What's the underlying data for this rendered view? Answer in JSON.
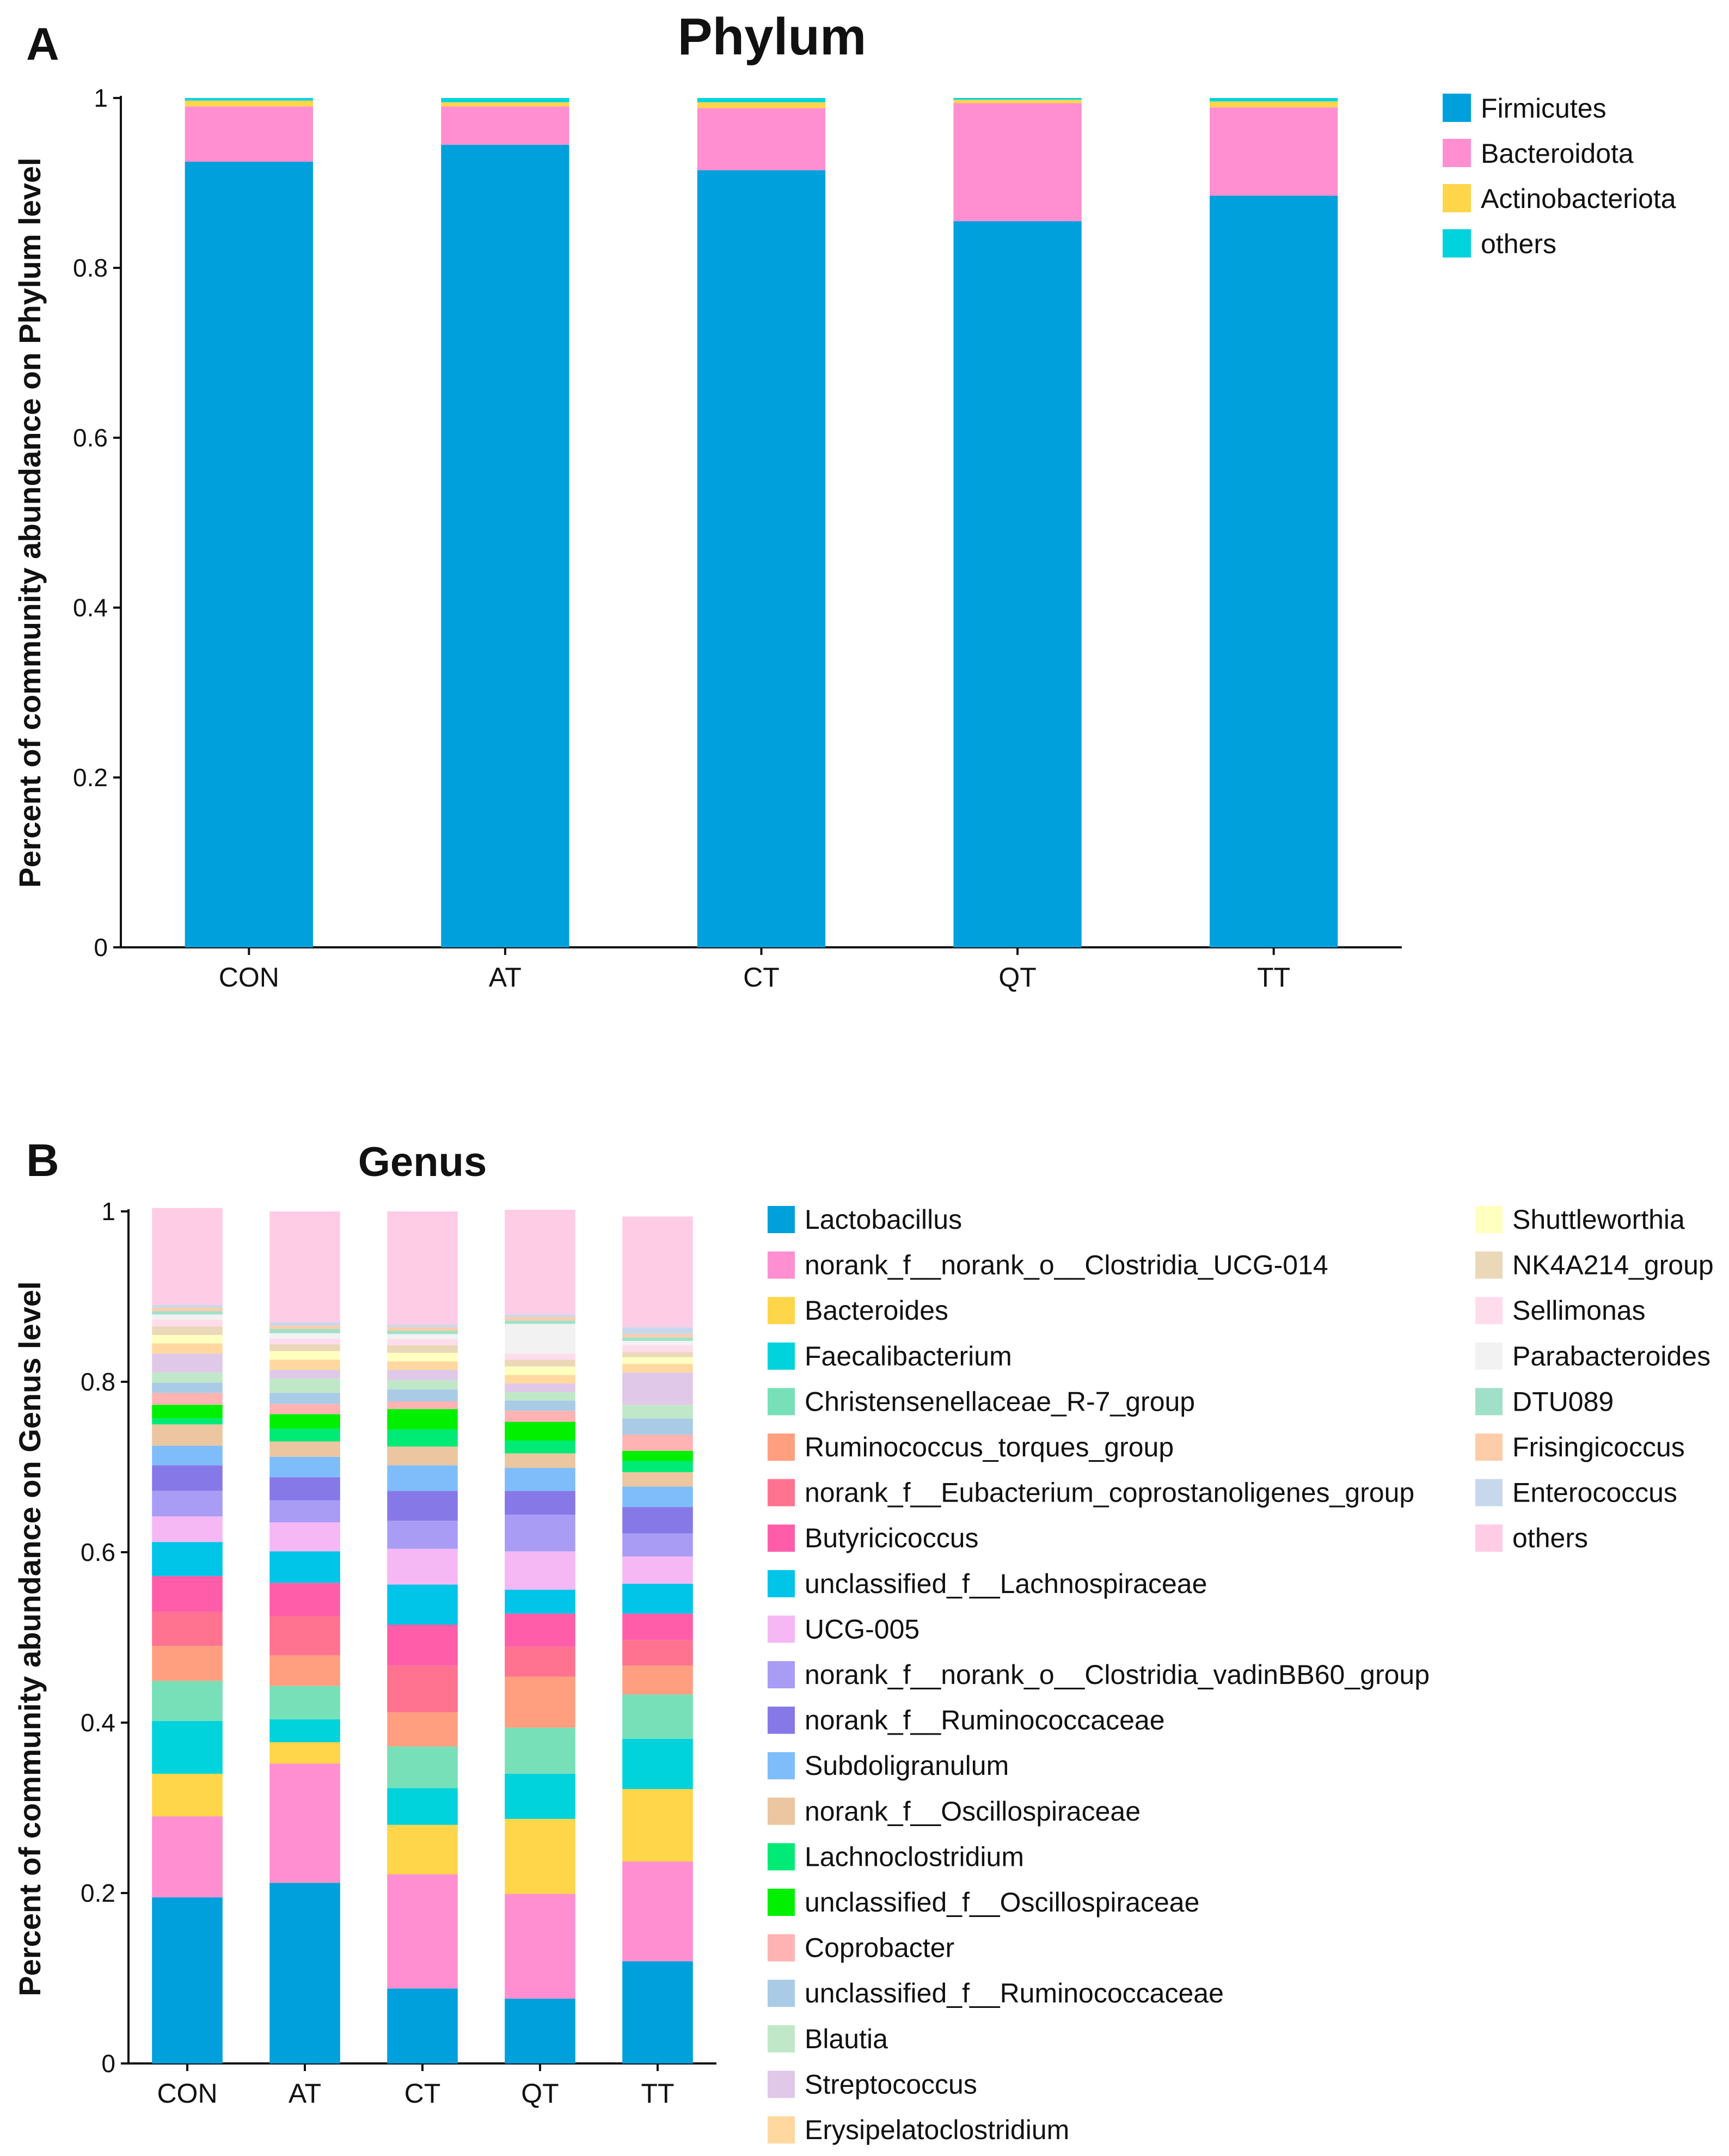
{
  "chart_data": [
    {
      "panel": "A",
      "type": "bar",
      "stacked": true,
      "title": "Phylum",
      "xlabel": "",
      "ylabel": "Percent of community abundance on Phylum level",
      "ylim": [
        0,
        1
      ],
      "yticks": [
        "0",
        "0.2",
        "0.4",
        "0.6",
        "0.8",
        "1"
      ],
      "categories": [
        "CON",
        "AT",
        "CT",
        "QT",
        "TT"
      ],
      "series": [
        {
          "name": "Firmicutes",
          "color": "#00A0DC",
          "values": [
            0.925,
            0.945,
            0.915,
            0.855,
            0.885
          ]
        },
        {
          "name": "Bacteroidota",
          "color": "#FF8FD0",
          "values": [
            0.065,
            0.045,
            0.073,
            0.139,
            0.104
          ]
        },
        {
          "name": "Actinobacteriota",
          "color": "#FFD54A",
          "values": [
            0.007,
            0.005,
            0.007,
            0.004,
            0.007
          ]
        },
        {
          "name": "others",
          "color": "#00D3DC",
          "values": [
            0.003,
            0.005,
            0.005,
            0.002,
            0.004
          ]
        }
      ]
    },
    {
      "panel": "B",
      "type": "bar",
      "stacked": true,
      "title": "Genus",
      "xlabel": "",
      "ylabel": "Percent of community abundance on Genus level",
      "ylim": [
        0,
        1
      ],
      "yticks": [
        "0",
        "0.2",
        "0.4",
        "0.6",
        "0.8",
        "1"
      ],
      "categories": [
        "CON",
        "AT",
        "CT",
        "QT",
        "TT"
      ],
      "series": [
        {
          "name": "Lactobacillus",
          "color": "#00A0DC",
          "values": [
            0.195,
            0.212,
            0.088,
            0.076,
            0.12
          ]
        },
        {
          "name": "norank_f__norank_o__Clostridia_UCG-014",
          "color": "#FF8FD0",
          "values": [
            0.095,
            0.14,
            0.134,
            0.123,
            0.117
          ]
        },
        {
          "name": "Bacteroides",
          "color": "#FFD54A",
          "values": [
            0.05,
            0.025,
            0.058,
            0.088,
            0.085
          ]
        },
        {
          "name": "Faecalibacterium",
          "color": "#00D3DC",
          "values": [
            0.062,
            0.027,
            0.043,
            0.053,
            0.059
          ]
        },
        {
          "name": "Christensenellaceae_R-7_group",
          "color": "#77E0B8",
          "values": [
            0.047,
            0.039,
            0.049,
            0.054,
            0.052
          ]
        },
        {
          "name": "Ruminococcus_torques_group",
          "color": "#FF9F80",
          "values": [
            0.041,
            0.036,
            0.04,
            0.06,
            0.034
          ]
        },
        {
          "name": "norank_f__Eubacterium_coprostanoligenes_group",
          "color": "#FF7290",
          "values": [
            0.04,
            0.046,
            0.055,
            0.035,
            0.03
          ]
        },
        {
          "name": "Butyricicoccus",
          "color": "#FF5DAA",
          "values": [
            0.042,
            0.039,
            0.048,
            0.039,
            0.031
          ]
        },
        {
          "name": "unclassified_f__Lachnospiraceae",
          "color": "#00C4E8",
          "values": [
            0.04,
            0.037,
            0.047,
            0.028,
            0.035
          ]
        },
        {
          "name": "UCG-005",
          "color": "#F5B8F5",
          "values": [
            0.03,
            0.034,
            0.042,
            0.045,
            0.032
          ]
        },
        {
          "name": "norank_f__norank_o__Clostridia_vadinBB60_group",
          "color": "#A89CF5",
          "values": [
            0.03,
            0.026,
            0.033,
            0.043,
            0.027
          ]
        },
        {
          "name": "norank_f__Ruminococcaceae",
          "color": "#8778E8",
          "values": [
            0.03,
            0.027,
            0.035,
            0.028,
            0.031
          ]
        },
        {
          "name": "Subdoligranulum",
          "color": "#7EBDFA",
          "values": [
            0.023,
            0.024,
            0.03,
            0.027,
            0.024
          ]
        },
        {
          "name": "norank_f__Oscillospiraceae",
          "color": "#EBC6A0",
          "values": [
            0.025,
            0.018,
            0.022,
            0.017,
            0.017
          ]
        },
        {
          "name": "Lachnoclostridium",
          "color": "#00EA76",
          "values": [
            0.007,
            0.015,
            0.02,
            0.015,
            0.013
          ]
        },
        {
          "name": "unclassified_f__Oscillospiraceae",
          "color": "#00F000",
          "values": [
            0.016,
            0.017,
            0.024,
            0.022,
            0.012
          ]
        },
        {
          "name": "Coprobacter",
          "color": "#FFB3B3",
          "values": [
            0.014,
            0.012,
            0.009,
            0.013,
            0.019
          ]
        },
        {
          "name": "unclassified_f__Ruminococcaceae",
          "color": "#A9CBE6",
          "values": [
            0.012,
            0.013,
            0.014,
            0.012,
            0.019
          ]
        },
        {
          "name": "Blautia",
          "color": "#C0E8C8",
          "values": [
            0.012,
            0.017,
            0.011,
            0.01,
            0.016
          ]
        },
        {
          "name": "Streptococcus",
          "color": "#E0C8E8",
          "values": [
            0.022,
            0.01,
            0.012,
            0.01,
            0.038
          ]
        },
        {
          "name": "Erysipelatoclostridium",
          "color": "#FFD8A0",
          "values": [
            0.012,
            0.012,
            0.01,
            0.01,
            0.01
          ]
        },
        {
          "name": "Shuttleworthia",
          "color": "#FFFFC0",
          "values": [
            0.01,
            0.01,
            0.01,
            0.01,
            0.008
          ]
        },
        {
          "name": "NK4A214_group",
          "color": "#EAD8B8",
          "values": [
            0.01,
            0.008,
            0.009,
            0.008,
            0.006
          ]
        },
        {
          "name": "Sellimonas",
          "color": "#FFDCEB",
          "values": [
            0.008,
            0.007,
            0.007,
            0.007,
            0.008
          ]
        },
        {
          "name": "Parabacteroides",
          "color": "#F2F2F2",
          "values": [
            0.006,
            0.006,
            0.006,
            0.035,
            0.005
          ]
        },
        {
          "name": "DTU089",
          "color": "#A0E0C8",
          "values": [
            0.004,
            0.005,
            0.004,
            0.004,
            0.004
          ]
        },
        {
          "name": "Frisingicoccus",
          "color": "#FFCCAA",
          "values": [
            0.004,
            0.004,
            0.004,
            0.004,
            0.004
          ]
        },
        {
          "name": "Enterococcus",
          "color": "#C8D8EC",
          "values": [
            0.003,
            0.004,
            0.003,
            0.003,
            0.008
          ]
        },
        {
          "name": "others",
          "color": "#FFCCE6",
          "values": [
            0.114,
            0.13,
            0.133,
            0.123,
            0.13
          ]
        }
      ]
    }
  ]
}
